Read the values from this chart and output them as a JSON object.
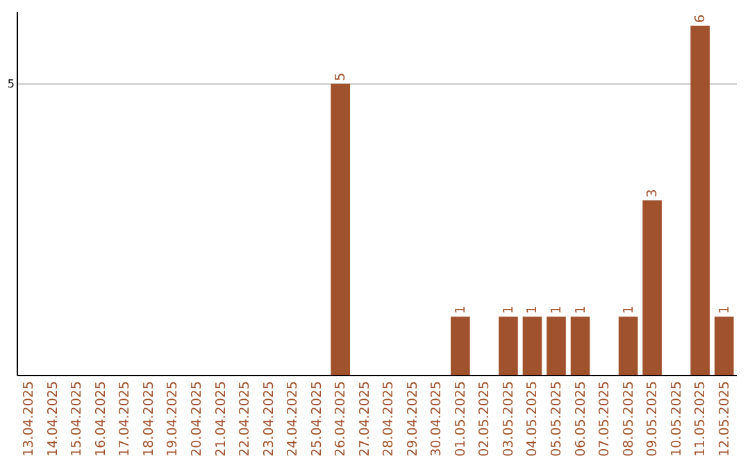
{
  "chart_data": {
    "type": "bar",
    "categories": [
      "13.04.2025",
      "14.04.2025",
      "15.04.2025",
      "16.04.2025",
      "17.04.2025",
      "18.04.2025",
      "19.04.2025",
      "20.04.2025",
      "21.04.2025",
      "22.04.2025",
      "23.04.2025",
      "24.04.2025",
      "25.04.2025",
      "26.04.2025",
      "27.04.2025",
      "28.04.2025",
      "29.04.2025",
      "30.04.2025",
      "01.05.2025",
      "02.05.2025",
      "03.05.2025",
      "04.05.2025",
      "05.05.2025",
      "06.05.2025",
      "07.05.2025",
      "08.05.2025",
      "09.05.2025",
      "10.05.2025",
      "11.05.2025",
      "12.05.2025"
    ],
    "values": [
      null,
      null,
      null,
      null,
      null,
      null,
      null,
      null,
      null,
      null,
      null,
      null,
      null,
      5,
      null,
      null,
      null,
      null,
      1,
      null,
      1,
      1,
      1,
      1,
      null,
      1,
      3,
      null,
      6,
      1
    ],
    "value_labels": [
      null,
      null,
      null,
      null,
      null,
      null,
      null,
      null,
      null,
      null,
      null,
      null,
      null,
      "5",
      null,
      null,
      null,
      null,
      "1",
      null,
      "1",
      "1",
      "1",
      "1",
      null,
      "1",
      "3",
      null,
      "6",
      "1"
    ],
    "color": "#a0522d",
    "ylim": [
      0,
      6.25
    ],
    "yticks": [
      5
    ],
    "grid": "y"
  }
}
